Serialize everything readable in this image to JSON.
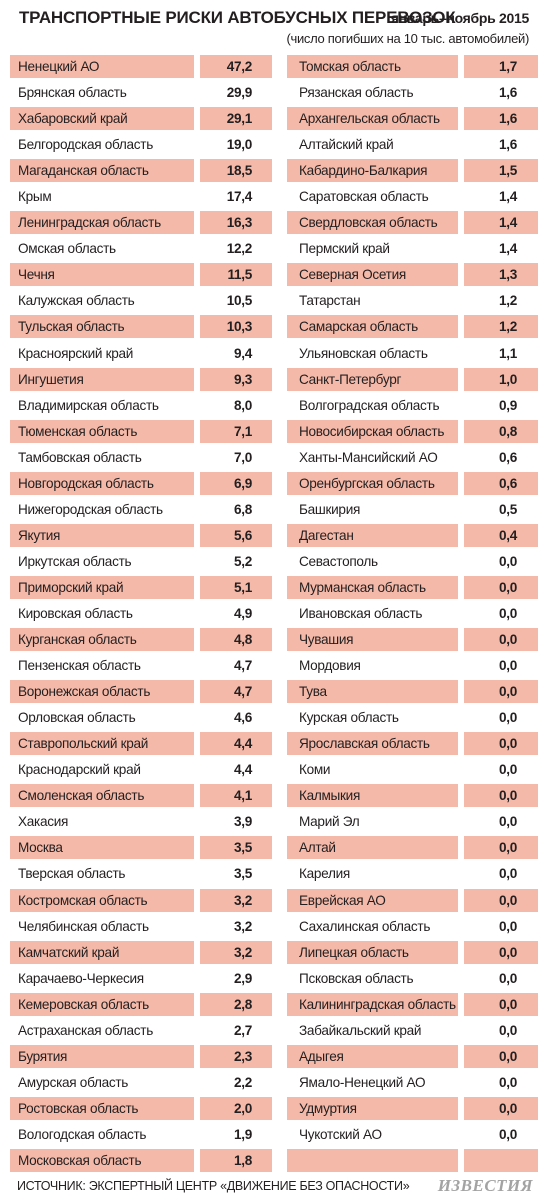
{
  "header": {
    "title": "ТРАНСПОРТНЫЕ РИСКИ АВТОБУСНЫХ ПЕРЕВОЗОК",
    "period": "январь–ноябрь 2015",
    "subtitle": "(число погибших на 10 тыс. автомобилей)"
  },
  "colors": {
    "highlight": "#f4b9a8",
    "text": "#231f20",
    "logo": "#a3a3a3"
  },
  "table_left": [
    {
      "name": "Ненецкий АО",
      "value": "47,2"
    },
    {
      "name": "Брянская область",
      "value": "29,9"
    },
    {
      "name": "Хабаровский край",
      "value": "29,1"
    },
    {
      "name": "Белгородская область",
      "value": "19,0"
    },
    {
      "name": "Магаданская область",
      "value": "18,5"
    },
    {
      "name": "Крым",
      "value": "17,4"
    },
    {
      "name": "Ленинградская область",
      "value": "16,3"
    },
    {
      "name": "Омская область",
      "value": "12,2"
    },
    {
      "name": "Чечня",
      "value": "11,5"
    },
    {
      "name": "Калужская область",
      "value": "10,5"
    },
    {
      "name": "Тульская область",
      "value": "10,3"
    },
    {
      "name": "Красноярский край",
      "value": "9,4"
    },
    {
      "name": "Ингушетия",
      "value": "9,3"
    },
    {
      "name": "Владимирская область",
      "value": "8,0"
    },
    {
      "name": "Тюменская область",
      "value": "7,1"
    },
    {
      "name": "Тамбовская область",
      "value": "7,0"
    },
    {
      "name": "Новгородская область",
      "value": "6,9"
    },
    {
      "name": "Нижегородская область",
      "value": "6,8"
    },
    {
      "name": "Якутия",
      "value": "5,6"
    },
    {
      "name": "Иркутская область",
      "value": "5,2"
    },
    {
      "name": "Приморский край",
      "value": "5,1"
    },
    {
      "name": "Кировская область",
      "value": "4,9"
    },
    {
      "name": "Курганская область",
      "value": "4,8"
    },
    {
      "name": "Пензенская область",
      "value": "4,7"
    },
    {
      "name": "Воронежская область",
      "value": "4,7"
    },
    {
      "name": "Орловская область",
      "value": "4,6"
    },
    {
      "name": "Ставропольский край",
      "value": "4,4"
    },
    {
      "name": "Краснодарский край",
      "value": "4,4"
    },
    {
      "name": "Смоленская область",
      "value": "4,1"
    },
    {
      "name": "Хакасия",
      "value": "3,9"
    },
    {
      "name": "Москва",
      "value": "3,5"
    },
    {
      "name": "Тверская область",
      "value": "3,5"
    },
    {
      "name": "Костромская область",
      "value": "3,2"
    },
    {
      "name": "Челябинская область",
      "value": "3,2"
    },
    {
      "name": "Камчатский край",
      "value": "3,2"
    },
    {
      "name": "Карачаево-Черкесия",
      "value": "2,9"
    },
    {
      "name": "Кемеровская область",
      "value": "2,8"
    },
    {
      "name": "Астраханская область",
      "value": "2,7"
    },
    {
      "name": "Бурятия",
      "value": "2,3"
    },
    {
      "name": "Амурская область",
      "value": "2,2"
    },
    {
      "name": "Ростовская область",
      "value": "2,0"
    },
    {
      "name": "Вологодская область",
      "value": "1,9"
    },
    {
      "name": "Московская область",
      "value": "1,8"
    }
  ],
  "table_right": [
    {
      "name": "Томская область",
      "value": "1,7"
    },
    {
      "name": "Рязанская область",
      "value": "1,6"
    },
    {
      "name": "Архангельская область",
      "value": "1,6"
    },
    {
      "name": "Алтайский край",
      "value": "1,6"
    },
    {
      "name": "Кабардино-Балкария",
      "value": "1,5"
    },
    {
      "name": "Саратовская область",
      "value": "1,4"
    },
    {
      "name": "Свердловская область",
      "value": "1,4"
    },
    {
      "name": "Пермский край",
      "value": "1,4"
    },
    {
      "name": "Северная Осетия",
      "value": "1,3"
    },
    {
      "name": "Татарстан",
      "value": "1,2"
    },
    {
      "name": "Самарская область",
      "value": "1,2"
    },
    {
      "name": "Ульяновская область",
      "value": "1,1"
    },
    {
      "name": "Санкт-Петербург",
      "value": "1,0"
    },
    {
      "name": "Волгоградская область",
      "value": "0,9"
    },
    {
      "name": "Новосибирская область",
      "value": "0,8"
    },
    {
      "name": "Ханты-Мансийский АО",
      "value": "0,6"
    },
    {
      "name": "Оренбургская область",
      "value": "0,6"
    },
    {
      "name": "Башкирия",
      "value": "0,5"
    },
    {
      "name": "Дагестан",
      "value": "0,4"
    },
    {
      "name": "Севастополь",
      "value": "0,0"
    },
    {
      "name": "Мурманская область",
      "value": "0,0"
    },
    {
      "name": "Ивановская область",
      "value": "0,0"
    },
    {
      "name": "Чувашия",
      "value": "0,0"
    },
    {
      "name": "Мордовия",
      "value": "0,0"
    },
    {
      "name": "Тува",
      "value": "0,0"
    },
    {
      "name": "Курская область",
      "value": "0,0"
    },
    {
      "name": "Ярославская область",
      "value": "0,0"
    },
    {
      "name": "Коми",
      "value": "0,0"
    },
    {
      "name": "Калмыкия",
      "value": "0,0"
    },
    {
      "name": "Марий Эл",
      "value": "0,0"
    },
    {
      "name": "Алтай",
      "value": "0,0"
    },
    {
      "name": "Карелия",
      "value": "0,0"
    },
    {
      "name": "Еврейская АО",
      "value": "0,0"
    },
    {
      "name": "Сахалинская область",
      "value": "0,0"
    },
    {
      "name": "Липецкая область",
      "value": "0,0"
    },
    {
      "name": "Псковская область",
      "value": "0,0"
    },
    {
      "name": "Калининградская область",
      "value": "0,0"
    },
    {
      "name": "Забайкальский край",
      "value": "0,0"
    },
    {
      "name": "Адыгея",
      "value": "0,0"
    },
    {
      "name": "Ямало-Ненецкий АО",
      "value": "0,0"
    },
    {
      "name": "Удмуртия",
      "value": "0,0"
    },
    {
      "name": "Чукотский АО",
      "value": "0,0"
    },
    {
      "name": "",
      "value": ""
    }
  ],
  "footer": {
    "source": "ИСТОЧНИК: ЭКСПЕРТНЫЙ ЦЕНТР «ДВИЖЕНИЕ БЕЗ ОПАСНОСТИ»",
    "logo": "ИЗВЕСТИЯ"
  }
}
